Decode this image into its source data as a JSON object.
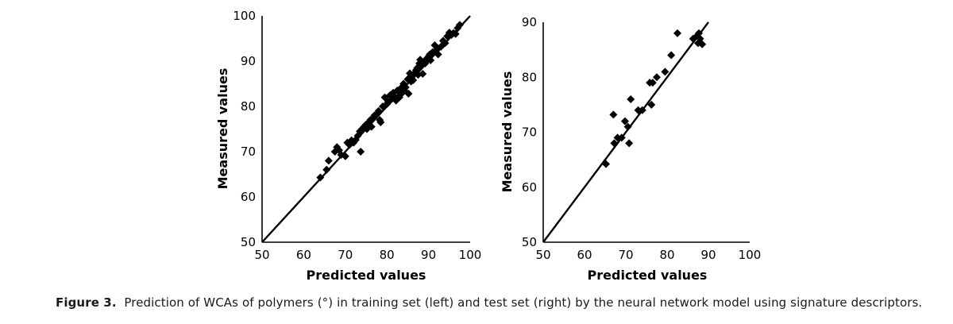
{
  "caption": {
    "label": "Figure 3.",
    "text": "Prediction of WCAs of polymers (°) in training set (left) and test set (right) by the neural network model using signature descriptors."
  },
  "colors": {
    "marker": "#000000",
    "line": "#000000",
    "axis": "#000000"
  },
  "chart_data": [
    {
      "type": "scatter",
      "title": "",
      "xlabel": "Predicted values",
      "ylabel": "Measured values",
      "xlim": [
        50,
        100
      ],
      "ylim": [
        50,
        100
      ],
      "xticks": [
        50,
        60,
        70,
        80,
        90,
        100
      ],
      "yticks": [
        50,
        60,
        70,
        80,
        90,
        100
      ],
      "marker": "diamond",
      "grid": false,
      "reference_line": {
        "x": [
          50,
          100
        ],
        "y": [
          50,
          100
        ]
      },
      "points": [
        [
          64,
          64.3
        ],
        [
          65.5,
          66
        ],
        [
          66,
          68
        ],
        [
          67.5,
          70
        ],
        [
          68,
          71
        ],
        [
          68.5,
          70.3
        ],
        [
          69,
          69.3
        ],
        [
          70,
          69
        ],
        [
          70.5,
          72
        ],
        [
          71,
          71.5
        ],
        [
          71.5,
          72.5
        ],
        [
          72,
          72
        ],
        [
          72.5,
          72.6
        ],
        [
          73,
          73.5
        ],
        [
          73.5,
          74.5
        ],
        [
          73.7,
          70
        ],
        [
          74,
          75
        ],
        [
          74.5,
          75.5
        ],
        [
          75,
          76
        ],
        [
          75.2,
          75
        ],
        [
          75.5,
          76.3
        ],
        [
          76,
          77
        ],
        [
          76.3,
          75.5
        ],
        [
          76.8,
          77.5
        ],
        [
          77,
          78
        ],
        [
          77.5,
          78.2
        ],
        [
          78,
          79
        ],
        [
          78.3,
          77
        ],
        [
          78.5,
          76.5
        ],
        [
          79,
          80
        ],
        [
          79.5,
          82
        ],
        [
          80,
          80.5
        ],
        [
          80.3,
          81
        ],
        [
          80.8,
          82.5
        ],
        [
          81,
          81.5
        ],
        [
          81.5,
          83
        ],
        [
          82,
          82
        ],
        [
          82.2,
          81.3
        ],
        [
          82.5,
          83.5
        ],
        [
          83,
          82
        ],
        [
          83.3,
          84
        ],
        [
          83.7,
          83
        ],
        [
          84,
          85
        ],
        [
          84.2,
          83.5
        ],
        [
          84.5,
          84.2
        ],
        [
          85,
          86
        ],
        [
          85.2,
          82.8
        ],
        [
          85.5,
          87.3
        ],
        [
          85.8,
          85.5
        ],
        [
          86,
          86.5
        ],
        [
          86.3,
          85.8
        ],
        [
          86.8,
          87.5
        ],
        [
          87,
          88
        ],
        [
          87.3,
          88.5
        ],
        [
          87.5,
          87
        ],
        [
          87.8,
          89.5
        ],
        [
          88,
          90.3
        ],
        [
          88.3,
          89
        ],
        [
          88.6,
          87.2
        ],
        [
          89,
          90
        ],
        [
          89.2,
          89.5
        ],
        [
          89.5,
          90.5
        ],
        [
          90,
          91
        ],
        [
          90.3,
          91.5
        ],
        [
          90.5,
          90.2
        ],
        [
          91,
          92
        ],
        [
          91.5,
          93.5
        ],
        [
          92,
          92.5
        ],
        [
          92.3,
          91.5
        ],
        [
          93,
          93.2
        ],
        [
          93.5,
          94.5
        ],
        [
          94,
          94
        ],
        [
          94.5,
          95.5
        ],
        [
          95,
          96.3
        ],
        [
          95.5,
          95.8
        ],
        [
          96,
          96.2
        ],
        [
          96.5,
          96
        ],
        [
          97,
          97.3
        ],
        [
          97.5,
          98
        ]
      ]
    },
    {
      "type": "scatter",
      "title": "",
      "xlabel": "Predicted values",
      "ylabel": "Measured values",
      "xlim": [
        50,
        100
      ],
      "ylim": [
        50,
        90
      ],
      "xticks": [
        50,
        60,
        70,
        80,
        90,
        100
      ],
      "yticks": [
        50,
        60,
        70,
        80,
        90
      ],
      "marker": "diamond",
      "grid": false,
      "reference_line": {
        "x": [
          50,
          90
        ],
        "y": [
          50,
          90
        ]
      },
      "points": [
        [
          65.2,
          64.2
        ],
        [
          67,
          73.2
        ],
        [
          67.2,
          68
        ],
        [
          68,
          69
        ],
        [
          69,
          69
        ],
        [
          69.8,
          72
        ],
        [
          70.5,
          71
        ],
        [
          70.8,
          68
        ],
        [
          71.2,
          76
        ],
        [
          73,
          74
        ],
        [
          74,
          74
        ],
        [
          75.8,
          79
        ],
        [
          76.2,
          75
        ],
        [
          76.5,
          79
        ],
        [
          77.5,
          80
        ],
        [
          79.5,
          81
        ],
        [
          81,
          84
        ],
        [
          82.5,
          88
        ],
        [
          86.3,
          87
        ],
        [
          87.2,
          87.5
        ],
        [
          87.5,
          86.2
        ],
        [
          87.7,
          88
        ],
        [
          88,
          87
        ],
        [
          88.5,
          86
        ]
      ]
    }
  ]
}
